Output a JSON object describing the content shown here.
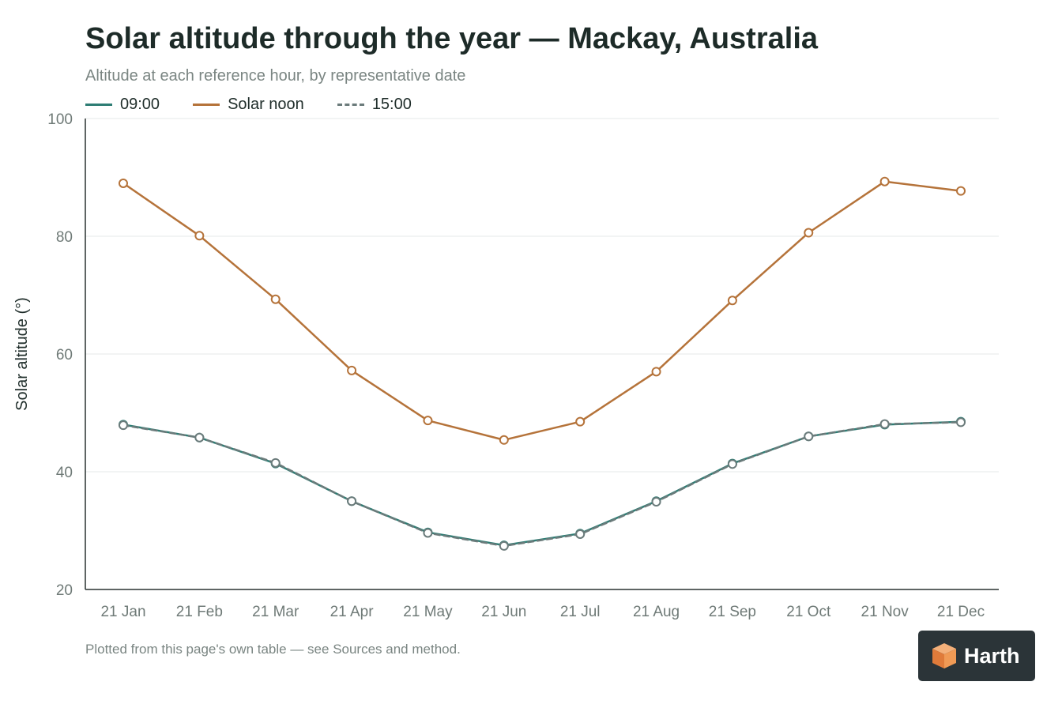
{
  "header": {
    "title": "Solar altitude through the year — Mackay, Australia",
    "subtitle": "Altitude at each reference hour, by representative date"
  },
  "footer": {
    "note": "Plotted from this page's own table — see Sources and method."
  },
  "brand": {
    "name": "Harth",
    "icon": "cube-logo-icon"
  },
  "colors": {
    "morning": "#2e7d74",
    "noon": "#b5733a",
    "afternoon": "#6b7b7b",
    "grid": "#e6eaea",
    "axis": "#2a3230"
  },
  "chart_data": {
    "type": "line",
    "title": "Solar altitude through the year — Mackay, Australia",
    "subtitle": "Altitude at each reference hour, by representative date",
    "ylabel": "Solar altitude (°)",
    "xlabel": "",
    "ylim": [
      20,
      100
    ],
    "yticks": [
      20,
      40,
      60,
      80,
      100
    ],
    "grid": true,
    "legend_position": "top-left",
    "categories": [
      "21 Jan",
      "21 Feb",
      "21 Mar",
      "21 Apr",
      "21 May",
      "21 Jun",
      "21 Jul",
      "21 Aug",
      "21 Sep",
      "21 Oct",
      "21 Nov",
      "21 Dec"
    ],
    "series": [
      {
        "name": "09:00",
        "style": "solid",
        "color": "#2e7d74",
        "values": [
          48.0,
          45.8,
          41.4,
          35.0,
          29.7,
          27.5,
          29.5,
          35.0,
          41.4,
          46.0,
          48.0,
          48.5
        ]
      },
      {
        "name": "Solar noon",
        "style": "solid",
        "color": "#b5733a",
        "values": [
          89.0,
          80.1,
          69.3,
          57.2,
          48.7,
          45.4,
          48.5,
          57.0,
          69.1,
          80.6,
          89.3,
          87.7
        ]
      },
      {
        "name": "15:00",
        "style": "dashed",
        "color": "#6b7b7b",
        "values": [
          47.9,
          45.8,
          41.5,
          35.0,
          29.6,
          27.4,
          29.4,
          34.9,
          41.3,
          46.0,
          48.1,
          48.4
        ]
      }
    ]
  }
}
